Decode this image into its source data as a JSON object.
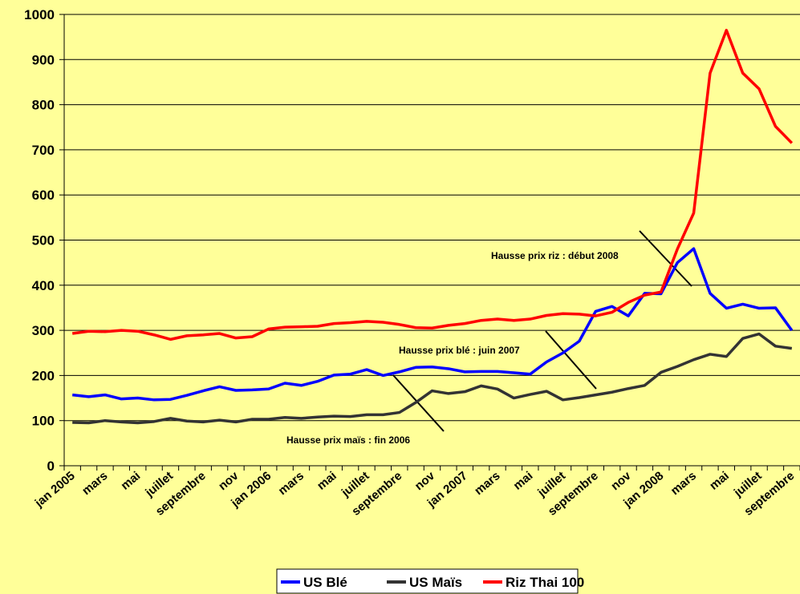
{
  "chart_data": {
    "type": "line",
    "categories": [
      "jan 2005",
      null,
      "mars",
      null,
      "mai",
      null,
      "juillet",
      null,
      "septembre",
      null,
      "nov",
      null,
      "jan 2006",
      null,
      "mars",
      null,
      "mai",
      null,
      "juillet",
      null,
      "septembre",
      null,
      "nov",
      null,
      "jan 2007",
      null,
      "mars",
      null,
      "mai",
      null,
      "juillet",
      null,
      "septembre",
      null,
      "nov",
      null,
      "jan 2008",
      null,
      "mars",
      null,
      "mai",
      null,
      "juillet",
      null,
      "septembre"
    ],
    "series": [
      {
        "name": "US Blé",
        "color": "#0000FF",
        "values": [
          157,
          153,
          157,
          148,
          150,
          146,
          147,
          156,
          166,
          175,
          167,
          168,
          170,
          183,
          178,
          187,
          201,
          203,
          213,
          200,
          208,
          218,
          219,
          215,
          208,
          209,
          209,
          206,
          203,
          230,
          250,
          276,
          342,
          353,
          332,
          382,
          381,
          450,
          481,
          382,
          349,
          358,
          349,
          350,
          300
        ]
      },
      {
        "name": "US Maïs",
        "color": "#333333",
        "values": [
          96,
          95,
          100,
          97,
          95,
          98,
          105,
          99,
          97,
          101,
          97,
          103,
          103,
          107,
          105,
          108,
          110,
          109,
          113,
          113,
          118,
          140,
          166,
          160,
          164,
          177,
          170,
          150,
          158,
          165,
          146,
          151,
          157,
          163,
          171,
          178,
          207,
          220,
          235,
          247,
          242,
          282,
          292,
          265,
          260
        ]
      },
      {
        "name": "Riz Thai 100",
        "color": "#FF0000",
        "values": [
          293,
          298,
          297,
          300,
          298,
          290,
          280,
          288,
          290,
          293,
          283,
          286,
          303,
          307,
          308,
          309,
          315,
          317,
          320,
          318,
          313,
          306,
          305,
          311,
          315,
          322,
          325,
          322,
          325,
          333,
          337,
          336,
          332,
          340,
          362,
          378,
          385,
          480,
          560,
          870,
          965,
          870,
          835,
          752,
          715
        ]
      }
    ],
    "ylim": [
      0,
      1000
    ],
    "yticks": [
      0,
      100,
      200,
      300,
      400,
      500,
      600,
      700,
      800,
      900,
      1000
    ],
    "grid": true,
    "annotations": [
      "Hausse prix riz : début 2008",
      "Hausse prix blé : juin 2007",
      "Hausse prix maïs : fin 2006"
    ]
  }
}
